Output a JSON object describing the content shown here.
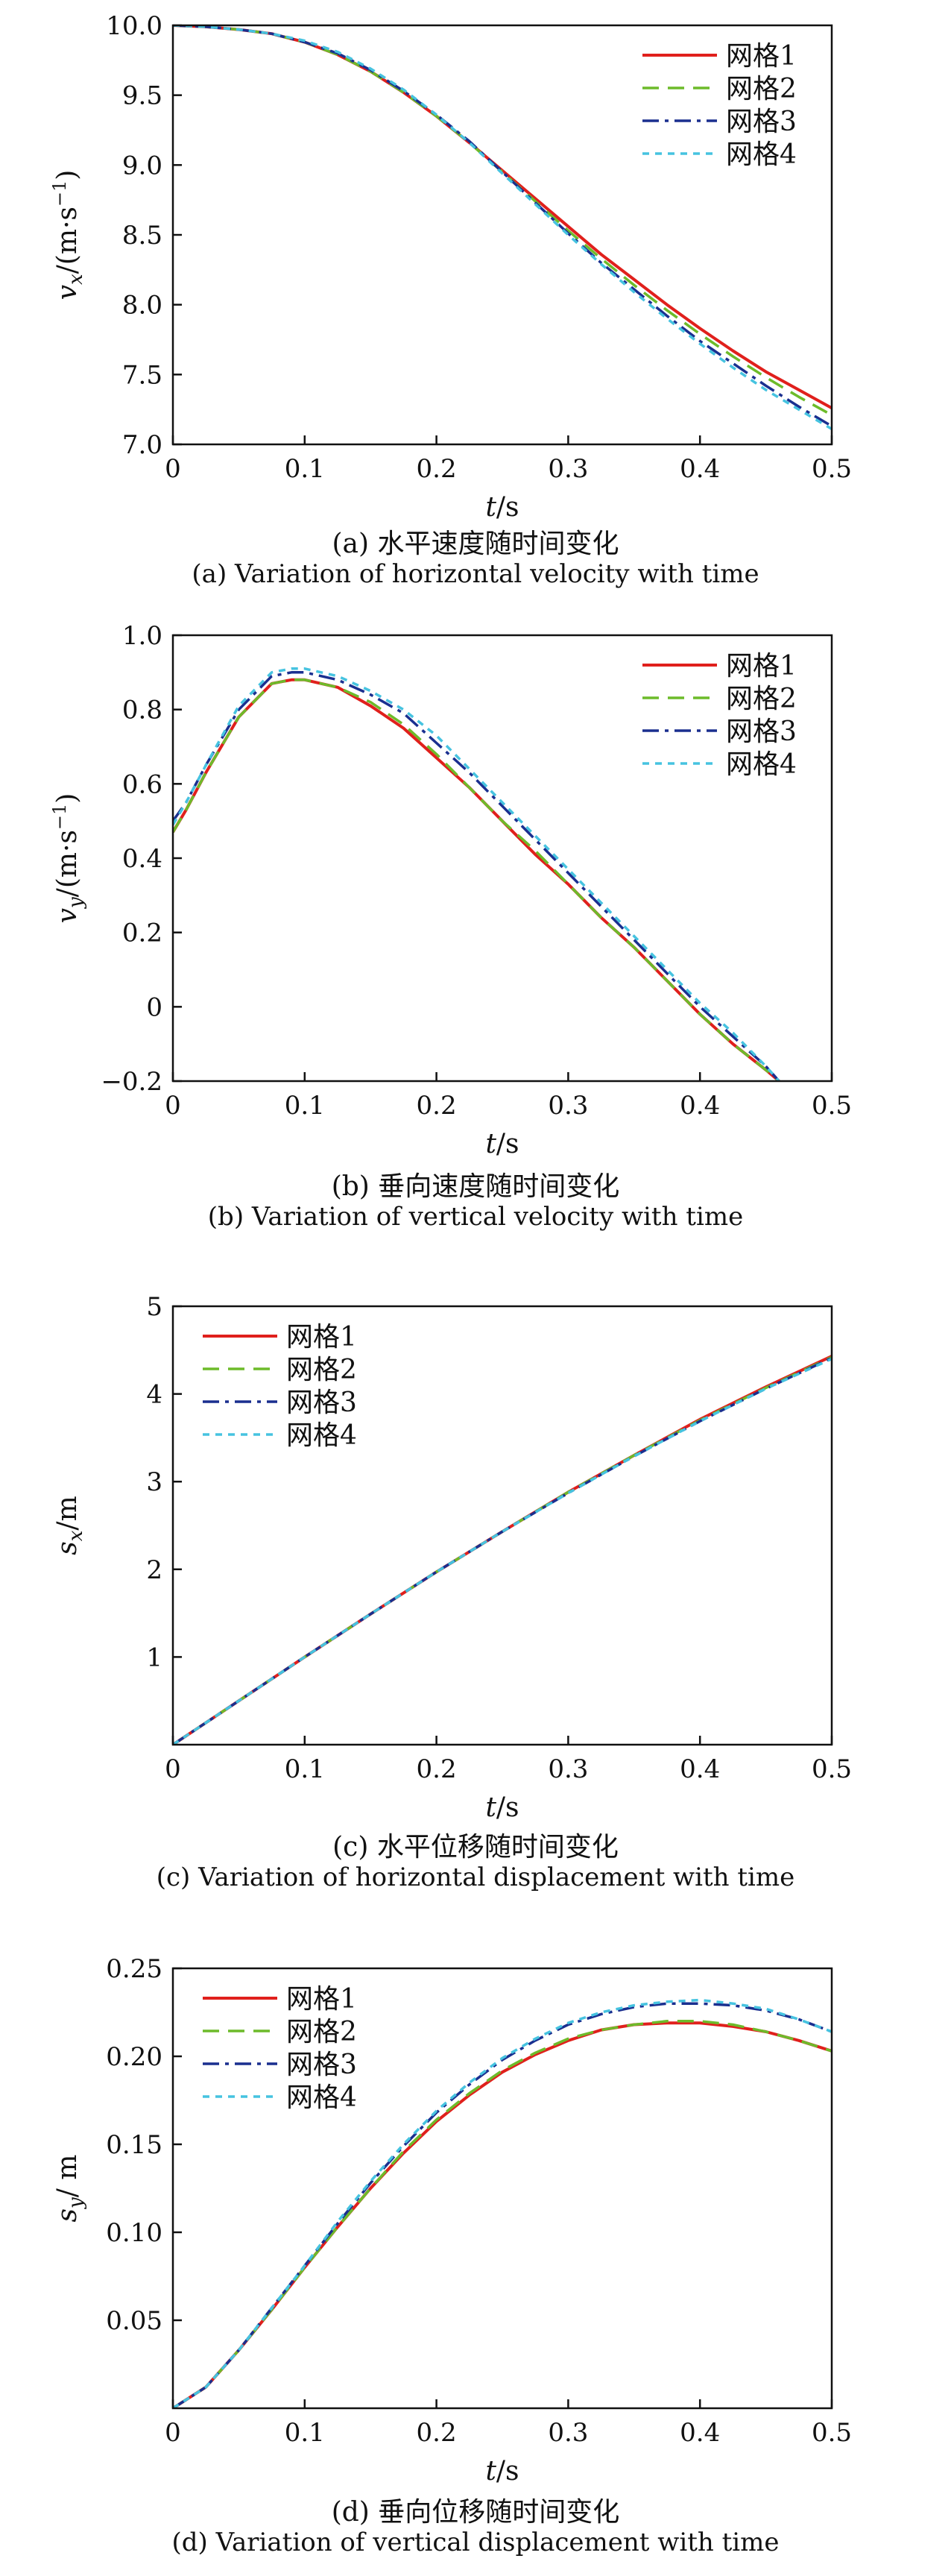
{
  "chart_data": [
    {
      "type": "line",
      "panel_id": "a",
      "xlabel_var": "t",
      "xlabel_unit": "/s",
      "ylabel_var": "v",
      "ylabel_sub": "x",
      "ylabel_unit": "/(m·s",
      "ylabel_sup": "−1",
      "ylabel_close": ")",
      "xlim": [
        0,
        0.5
      ],
      "ylim": [
        7.0,
        10.0
      ],
      "xticks": [
        0,
        0.1,
        0.2,
        0.3,
        0.4,
        0.5
      ],
      "xtick_labels": [
        "0",
        "0.1",
        "0.2",
        "0.3",
        "0.4",
        "0.5"
      ],
      "yticks": [
        7.0,
        7.5,
        8.0,
        8.5,
        9.0,
        9.5,
        10.0
      ],
      "ytick_labels": [
        "7.0",
        "7.5",
        "8.0",
        "8.5",
        "9.0",
        "9.5",
        "10.0"
      ],
      "legend_position": "top-right",
      "grid": false,
      "x": [
        0,
        0.025,
        0.05,
        0.075,
        0.1,
        0.125,
        0.15,
        0.175,
        0.2,
        0.225,
        0.25,
        0.275,
        0.3,
        0.325,
        0.35,
        0.375,
        0.4,
        0.425,
        0.45,
        0.475,
        0.5
      ],
      "series": [
        {
          "name": "网格1",
          "values": [
            10.0,
            9.99,
            9.97,
            9.94,
            9.88,
            9.79,
            9.67,
            9.52,
            9.35,
            9.16,
            8.96,
            8.76,
            8.56,
            8.36,
            8.18,
            8.0,
            7.83,
            7.67,
            7.52,
            7.39,
            7.26
          ]
        },
        {
          "name": "网格2",
          "values": [
            10.0,
            9.99,
            9.97,
            9.94,
            9.88,
            9.79,
            9.67,
            9.52,
            9.35,
            9.16,
            8.95,
            8.74,
            8.53,
            8.33,
            8.14,
            7.96,
            7.79,
            7.63,
            7.48,
            7.34,
            7.21
          ]
        },
        {
          "name": "网格3",
          "values": [
            10.0,
            9.99,
            9.97,
            9.94,
            9.88,
            9.8,
            9.68,
            9.53,
            9.36,
            9.17,
            8.95,
            8.73,
            8.51,
            8.3,
            8.11,
            7.92,
            7.74,
            7.58,
            7.42,
            7.27,
            7.13
          ]
        },
        {
          "name": "网格4",
          "values": [
            10.0,
            9.99,
            9.97,
            9.94,
            9.89,
            9.81,
            9.69,
            9.54,
            9.36,
            9.16,
            8.94,
            8.72,
            8.5,
            8.29,
            8.09,
            7.9,
            7.72,
            7.55,
            7.39,
            7.25,
            7.11
          ]
        }
      ],
      "caption_zh": "(a) 水平速度随时间变化",
      "caption_en": "(a) Variation of horizontal velocity with time"
    },
    {
      "type": "line",
      "panel_id": "b",
      "xlabel_var": "t",
      "xlabel_unit": "/s",
      "ylabel_var": "v",
      "ylabel_sub": "y",
      "ylabel_unit": "/(m·s",
      "ylabel_sup": "−1",
      "ylabel_close": ")",
      "xlim": [
        0,
        0.5
      ],
      "ylim": [
        -0.2,
        1.0
      ],
      "xticks": [
        0,
        0.1,
        0.2,
        0.3,
        0.4,
        0.5
      ],
      "xtick_labels": [
        "0",
        "0.1",
        "0.2",
        "0.3",
        "0.4",
        "0.5"
      ],
      "yticks": [
        -0.2,
        0,
        0.2,
        0.4,
        0.6,
        0.8,
        1.0
      ],
      "ytick_labels": [
        "−0.2",
        "0",
        "0.2",
        "0.4",
        "0.6",
        "0.8",
        "1.0"
      ],
      "legend_position": "top-right",
      "grid": false,
      "x": [
        0,
        0.01,
        0.025,
        0.05,
        0.075,
        0.09,
        0.1,
        0.125,
        0.15,
        0.175,
        0.2,
        0.225,
        0.25,
        0.275,
        0.3,
        0.325,
        0.35,
        0.375,
        0.4,
        0.425,
        0.45,
        0.46
      ],
      "series": [
        {
          "name": "网格1",
          "values": [
            0.47,
            0.53,
            0.63,
            0.78,
            0.87,
            0.88,
            0.88,
            0.86,
            0.81,
            0.75,
            0.67,
            0.59,
            0.5,
            0.41,
            0.33,
            0.24,
            0.16,
            0.07,
            -0.02,
            -0.1,
            -0.17,
            -0.2
          ]
        },
        {
          "name": "网格2",
          "values": [
            0.47,
            0.53,
            0.63,
            0.78,
            0.87,
            0.88,
            0.88,
            0.86,
            0.82,
            0.76,
            0.68,
            0.59,
            0.5,
            0.42,
            0.33,
            0.24,
            0.16,
            0.07,
            -0.02,
            -0.1,
            -0.17,
            -0.2
          ]
        },
        {
          "name": "网格3",
          "values": [
            0.5,
            0.55,
            0.65,
            0.8,
            0.89,
            0.9,
            0.9,
            0.88,
            0.84,
            0.79,
            0.71,
            0.63,
            0.54,
            0.45,
            0.36,
            0.27,
            0.18,
            0.09,
            0.0,
            -0.08,
            -0.16,
            -0.2
          ]
        },
        {
          "name": "网格4",
          "values": [
            0.49,
            0.55,
            0.65,
            0.81,
            0.9,
            0.91,
            0.91,
            0.89,
            0.85,
            0.8,
            0.73,
            0.64,
            0.55,
            0.46,
            0.37,
            0.28,
            0.19,
            0.1,
            0.01,
            -0.07,
            -0.16,
            -0.2
          ]
        }
      ],
      "caption_zh": "(b) 垂向速度随时间变化",
      "caption_en": "(b) Variation of vertical velocity with time"
    },
    {
      "type": "line",
      "panel_id": "c",
      "xlabel_var": "t",
      "xlabel_unit": "/s",
      "ylabel_var": "s",
      "ylabel_sub": "x",
      "ylabel_unit": "/m",
      "ylabel_sup": "",
      "ylabel_close": "",
      "xlim": [
        0,
        0.5
      ],
      "ylim": [
        0,
        5
      ],
      "xticks": [
        0,
        0.1,
        0.2,
        0.3,
        0.4,
        0.5
      ],
      "xtick_labels": [
        "0",
        "0.1",
        "0.2",
        "0.3",
        "0.4",
        "0.5"
      ],
      "yticks": [
        1,
        2,
        3,
        4,
        5
      ],
      "ytick_labels": [
        "1",
        "2",
        "3",
        "4",
        "5"
      ],
      "legend_position": "top-left",
      "grid": false,
      "x": [
        0,
        0.05,
        0.1,
        0.15,
        0.2,
        0.25,
        0.3,
        0.35,
        0.4,
        0.45,
        0.5
      ],
      "series": [
        {
          "name": "网格1",
          "values": [
            0,
            0.5,
            1.0,
            1.49,
            1.97,
            2.43,
            2.88,
            3.3,
            3.71,
            4.08,
            4.43
          ]
        },
        {
          "name": "网格2",
          "values": [
            0,
            0.5,
            1.0,
            1.49,
            1.97,
            2.43,
            2.88,
            3.3,
            3.7,
            4.07,
            4.42
          ]
        },
        {
          "name": "网格3",
          "values": [
            0,
            0.5,
            1.0,
            1.49,
            1.97,
            2.43,
            2.87,
            3.29,
            3.69,
            4.06,
            4.41
          ]
        },
        {
          "name": "网格4",
          "values": [
            0,
            0.5,
            1.0,
            1.49,
            1.97,
            2.43,
            2.87,
            3.29,
            3.69,
            4.06,
            4.4
          ]
        }
      ],
      "caption_zh": "(c) 水平位移随时间变化",
      "caption_en": "(c) Variation of horizontal displacement with time"
    },
    {
      "type": "line",
      "panel_id": "d",
      "xlabel_var": "t",
      "xlabel_unit": "/s",
      "ylabel_var": "s",
      "ylabel_sub": "y",
      "ylabel_unit": "/ m",
      "ylabel_sup": "",
      "ylabel_close": "",
      "xlim": [
        0,
        0.5
      ],
      "ylim": [
        0,
        0.25
      ],
      "xticks": [
        0,
        0.1,
        0.2,
        0.3,
        0.4,
        0.5
      ],
      "xtick_labels": [
        "0",
        "0.1",
        "0.2",
        "0.3",
        "0.4",
        "0.5"
      ],
      "yticks": [
        0.05,
        0.1,
        0.15,
        0.2,
        0.25
      ],
      "ytick_labels": [
        "0.05",
        "0.10",
        "0.15",
        "0.20",
        "0.25"
      ],
      "legend_position": "top-left",
      "grid": false,
      "x": [
        0,
        0.025,
        0.05,
        0.075,
        0.1,
        0.125,
        0.15,
        0.175,
        0.2,
        0.225,
        0.25,
        0.275,
        0.3,
        0.325,
        0.35,
        0.375,
        0.4,
        0.425,
        0.45,
        0.475,
        0.5
      ],
      "series": [
        {
          "name": "网格1",
          "values": [
            0,
            0.012,
            0.033,
            0.056,
            0.08,
            0.103,
            0.125,
            0.145,
            0.163,
            0.178,
            0.191,
            0.201,
            0.209,
            0.215,
            0.218,
            0.219,
            0.219,
            0.217,
            0.214,
            0.209,
            0.203
          ]
        },
        {
          "name": "网格2",
          "values": [
            0,
            0.012,
            0.033,
            0.056,
            0.08,
            0.103,
            0.125,
            0.146,
            0.164,
            0.179,
            0.192,
            0.202,
            0.21,
            0.215,
            0.218,
            0.22,
            0.22,
            0.218,
            0.214,
            0.209,
            0.203
          ]
        },
        {
          "name": "网格3",
          "values": [
            0,
            0.012,
            0.033,
            0.057,
            0.081,
            0.105,
            0.128,
            0.149,
            0.168,
            0.184,
            0.198,
            0.209,
            0.218,
            0.224,
            0.228,
            0.23,
            0.23,
            0.229,
            0.226,
            0.221,
            0.214
          ]
        },
        {
          "name": "网格4",
          "values": [
            0,
            0.012,
            0.033,
            0.057,
            0.081,
            0.106,
            0.129,
            0.15,
            0.169,
            0.185,
            0.199,
            0.21,
            0.219,
            0.225,
            0.229,
            0.231,
            0.232,
            0.23,
            0.227,
            0.221,
            0.214
          ]
        }
      ],
      "caption_zh": "(d) 垂向位移随时间变化",
      "caption_en": "(d) Variation of vertical displacement with time"
    }
  ],
  "styles": {
    "series_colors": [
      "#e0201c",
      "#6dbb2a",
      "#1a2f8f",
      "#46c3e0"
    ],
    "axis_color": "#111111"
  }
}
